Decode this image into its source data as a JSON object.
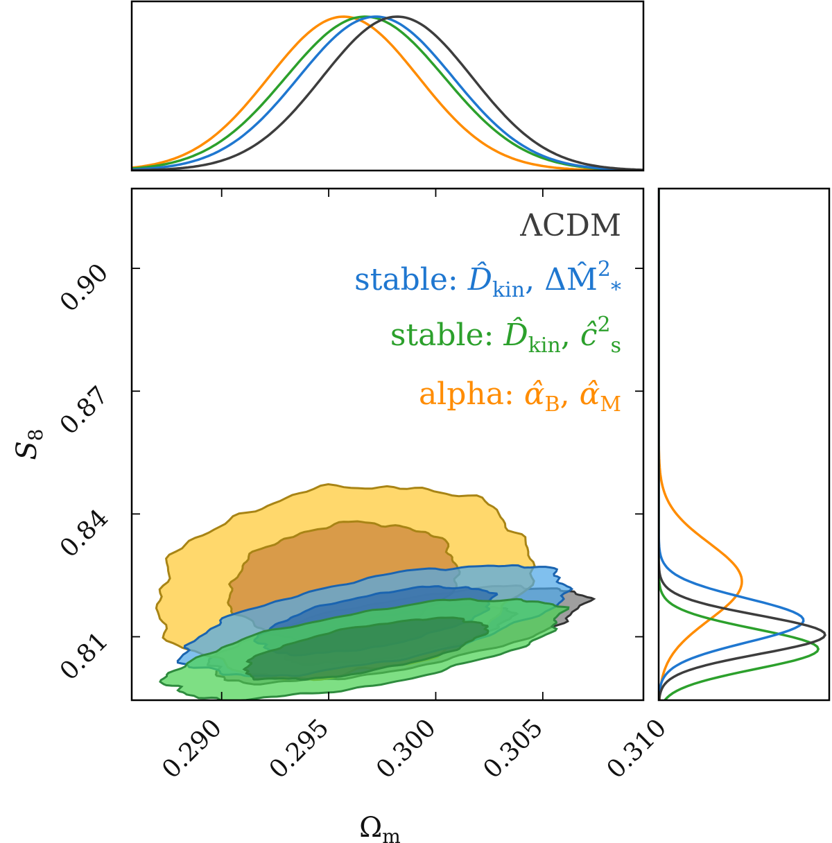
{
  "chart_data": {
    "type": "corner-contour",
    "title": "",
    "x_param": {
      "name": "Omega_m",
      "label_main": "Ω",
      "label_sub": "m",
      "lim": [
        0.2858,
        0.3097
      ],
      "ticks": [
        0.29,
        0.295,
        0.3,
        0.305,
        0.31
      ],
      "tick_labels": [
        "0.290",
        "0.295",
        "0.300",
        "0.305",
        "0.310"
      ]
    },
    "y_param": {
      "name": "S_8",
      "label_main": "S",
      "label_sub": "8",
      "lim": [
        0.7945,
        0.9195
      ],
      "ticks": [
        0.81,
        0.84,
        0.87,
        0.9
      ],
      "tick_labels": [
        "0.81",
        "0.84",
        "0.87",
        "0.90"
      ]
    },
    "legend": {
      "placement": "top-right",
      "entries": [
        {
          "key": "lcdm",
          "parts": [
            {
              "t": "ΛCDM"
            }
          ]
        },
        {
          "key": "stable_dm",
          "parts": [
            {
              "t": "stable: "
            },
            {
              "t": "D̂",
              "italic": true
            },
            {
              "t": "kin",
              "sub": true
            },
            {
              "t": ", ΔM̂"
            },
            {
              "t": "2",
              "sup": true
            },
            {
              "t": "*",
              "sub": true
            }
          ]
        },
        {
          "key": "stable_cs",
          "parts": [
            {
              "t": "stable: "
            },
            {
              "t": "D̂",
              "italic": true
            },
            {
              "t": "kin",
              "sub": true
            },
            {
              "t": ", "
            },
            {
              "t": "ĉ",
              "italic": true
            },
            {
              "t": "2",
              "sup": true
            },
            {
              "t": "s",
              "sub": true
            }
          ]
        },
        {
          "key": "alpha",
          "parts": [
            {
              "t": "alpha: "
            },
            {
              "t": "α̂",
              "italic": true
            },
            {
              "t": "B",
              "sub": true
            },
            {
              "t": ", "
            },
            {
              "t": "α̂",
              "italic": true
            },
            {
              "t": "M",
              "sub": true
            }
          ]
        }
      ]
    },
    "series": [
      {
        "key": "lcdm",
        "name": "ΛCDM",
        "color": "#3d3d3d",
        "fill": "#7a7a7a",
        "inner_fill": "#4b4b4b",
        "edge": "#333333",
        "mean": [
          0.2982,
          0.8105
        ],
        "sigma": [
          0.0035,
          0.0047
        ],
        "rho": 0.68,
        "order": 1
      },
      {
        "key": "alpha",
        "name": "alpha",
        "color": "#ff8c00",
        "fill": "#ffc933",
        "inner_fill": "#c9823b",
        "edge": "#a88415",
        "mean": [
          0.2957,
          0.8235
        ],
        "sigma": [
          0.0035,
          0.0094
        ],
        "rho": 0.2,
        "order": 2
      },
      {
        "key": "stable_dm",
        "name": "stable: D_kin, ΔM*^2",
        "color": "#1f77d0",
        "fill": "#4fa8e8",
        "inner_fill": "#2b66a8",
        "edge": "#1a64b0",
        "mean": [
          0.2972,
          0.814
        ],
        "sigma": [
          0.0036,
          0.0054
        ],
        "rho": 0.62,
        "order": 3
      },
      {
        "key": "stable_cs",
        "name": "stable: D_kin, c_s^2",
        "color": "#2ca02c",
        "fill": "#4cd255",
        "inner_fill": "#2f7a4a",
        "edge": "#2e8b3e",
        "mean": [
          0.2967,
          0.807
        ],
        "sigma": [
          0.0037,
          0.0049
        ],
        "rho": 0.66,
        "order": 4
      }
    ]
  }
}
